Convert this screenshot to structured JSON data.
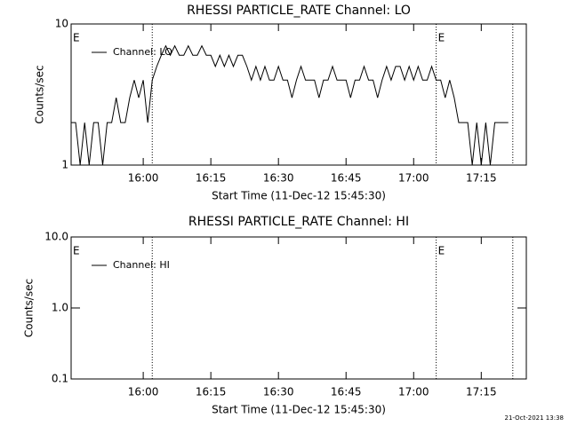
{
  "chart_data": [
    {
      "type": "line",
      "title": "RHESSI PARTICLE_RATE Channel: LO",
      "xlabel": "Start Time (11-Dec-12 15:45:30)",
      "ylabel": "Counts/sec",
      "x": [
        "15:44",
        "15:45",
        "15:46",
        "15:47",
        "15:48",
        "15:49",
        "15:50",
        "15:51",
        "15:52",
        "15:53",
        "15:54",
        "15:55",
        "15:56",
        "15:57",
        "15:58",
        "15:59",
        "16:00",
        "16:01",
        "16:02",
        "16:03",
        "16:04",
        "16:05",
        "16:06",
        "16:07",
        "16:08",
        "16:09",
        "16:10",
        "16:11",
        "16:12",
        "16:13",
        "16:14",
        "16:15",
        "16:16",
        "16:17",
        "16:18",
        "16:19",
        "16:20",
        "16:21",
        "16:22",
        "16:23",
        "16:24",
        "16:25",
        "16:26",
        "16:27",
        "16:28",
        "16:29",
        "16:30",
        "16:31",
        "16:32",
        "16:33",
        "16:34",
        "16:35",
        "16:36",
        "16:37",
        "16:38",
        "16:39",
        "16:40",
        "16:41",
        "16:42",
        "16:43",
        "16:44",
        "16:45",
        "16:46",
        "16:47",
        "16:48",
        "16:49",
        "16:50",
        "16:51",
        "16:52",
        "16:53",
        "16:54",
        "16:55",
        "16:56",
        "16:57",
        "16:58",
        "16:59",
        "17:00",
        "17:01",
        "17:02",
        "17:03",
        "17:04",
        "17:05",
        "17:06",
        "17:07",
        "17:08",
        "17:09",
        "17:10",
        "17:11",
        "17:12",
        "17:13",
        "17:14",
        "17:15",
        "17:16",
        "17:17",
        "17:18",
        "17:19",
        "17:20",
        "17:21"
      ],
      "series": [
        {
          "name": "Channel: LO",
          "color": "#000000",
          "values": [
            2,
            2,
            1,
            2,
            1,
            2,
            2,
            1,
            2,
            2,
            3,
            2,
            2,
            3,
            4,
            3,
            4,
            2,
            4,
            5,
            6,
            7,
            6,
            7,
            6,
            6,
            7,
            6,
            6,
            7,
            6,
            6,
            5,
            6,
            5,
            6,
            5,
            6,
            6,
            5,
            4,
            5,
            4,
            5,
            4,
            4,
            5,
            4,
            4,
            3,
            4,
            5,
            4,
            4,
            4,
            3,
            4,
            4,
            5,
            4,
            4,
            4,
            3,
            4,
            4,
            5,
            4,
            4,
            3,
            4,
            5,
            4,
            5,
            5,
            4,
            5,
            4,
            5,
            4,
            4,
            5,
            4,
            4,
            3,
            4,
            3,
            2,
            2,
            2,
            1,
            2,
            1,
            2,
            1,
            2,
            2,
            2,
            2
          ]
        }
      ],
      "xlim": [
        "15:44",
        "17:25"
      ],
      "xticks": [
        "16:00",
        "16:15",
        "16:30",
        "16:45",
        "17:00",
        "17:15"
      ],
      "ylim": [
        1,
        10
      ],
      "yticks": [
        1,
        10
      ],
      "log_y": true,
      "vlines": [
        "16:02",
        "17:05",
        "17:22"
      ],
      "annotations": [
        {
          "text": "E",
          "x": "15:44"
        },
        {
          "text": "E",
          "x": "17:05"
        }
      ],
      "legend": "upper left"
    },
    {
      "type": "line",
      "title": "RHESSI PARTICLE_RATE Channel: HI",
      "xlabel": "Start Time (11-Dec-12 15:45:30)",
      "ylabel": "Counts/sec",
      "x": [],
      "series": [
        {
          "name": "Channel: HI",
          "color": "#000000",
          "values": []
        }
      ],
      "xlim": [
        "15:44",
        "17:25"
      ],
      "xticks": [
        "16:00",
        "16:15",
        "16:30",
        "16:45",
        "17:00",
        "17:15"
      ],
      "ylim": [
        0.1,
        10
      ],
      "yticks": [
        {
          "value": 10,
          "label": "10.0"
        },
        {
          "value": 1,
          "label": "1.0"
        },
        0.1
      ],
      "log_y": true,
      "vlines": [
        "16:02",
        "17:05",
        "17:22"
      ],
      "annotations": [
        {
          "text": "E",
          "x": "15:44"
        },
        {
          "text": "E",
          "x": "17:05"
        }
      ],
      "legend": "upper left"
    }
  ],
  "footer": "21-Oct-2021 13:38"
}
